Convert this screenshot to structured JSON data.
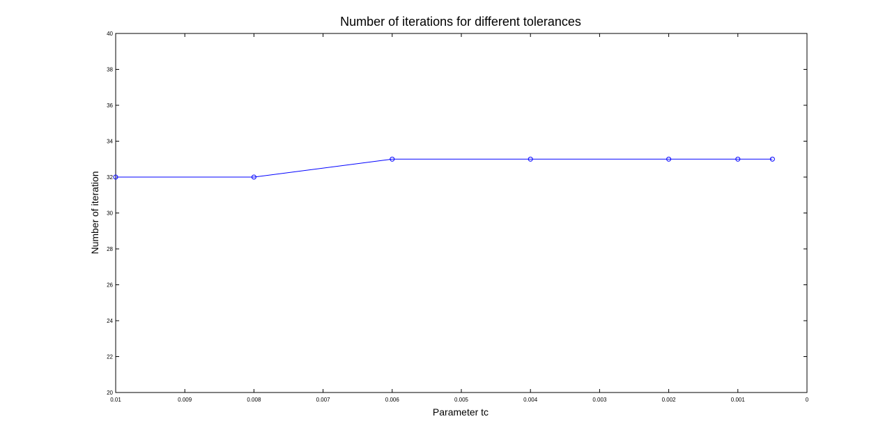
{
  "chart_data": {
    "type": "line",
    "title": "Number of iterations for different tolerances",
    "xlabel": "Parameter tc",
    "ylabel": "Number of iteration",
    "xlim": [
      0.01,
      0
    ],
    "x_reversed": true,
    "ylim": [
      20,
      40
    ],
    "grid": false,
    "legend": "none",
    "x_ticks": [
      "0.01",
      "0.009",
      "0.008",
      "0.007",
      "0.006",
      "0.005",
      "0.004",
      "0.003",
      "0.002",
      "0.001",
      "0"
    ],
    "x_tick_values": [
      0.01,
      0.009,
      0.008,
      0.007,
      0.006,
      0.005,
      0.004,
      0.003,
      0.002,
      0.001,
      0
    ],
    "y_ticks": [
      "20",
      "22",
      "24",
      "26",
      "28",
      "30",
      "32",
      "34",
      "36",
      "38",
      "40"
    ],
    "y_tick_values": [
      20,
      22,
      24,
      26,
      28,
      30,
      32,
      34,
      36,
      38,
      40
    ],
    "series": [
      {
        "color": "#0000ff",
        "marker": "circle",
        "x": [
          0.01,
          0.008,
          0.006,
          0.004,
          0.002,
          0.001,
          0.0005
        ],
        "y": [
          32,
          32,
          33,
          33,
          33,
          33,
          33
        ]
      }
    ]
  }
}
